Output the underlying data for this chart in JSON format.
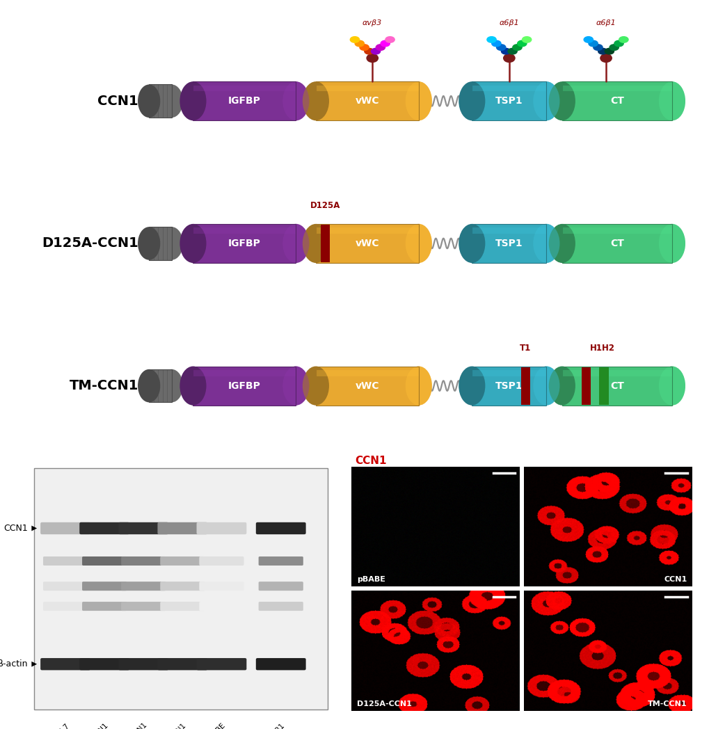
{
  "bg_color": "#ffffff",
  "domain_colors": {
    "signal": "#6a6a6a",
    "IGFBP": "#7B3094",
    "vWC": "#E8A830",
    "TSP1": "#35AABE",
    "CT": "#45C47A"
  },
  "integrin_label_color": "#8B0000",
  "row_labels": [
    "CCN1",
    "D125A-CCN1",
    "TM-CCN1"
  ],
  "avb3_bead_colors": [
    "#CC3300",
    "#FF6600",
    "#FF9900",
    "#FFCC00",
    "#9900CC",
    "#CC00CC",
    "#FF00FF",
    "#FF66CC"
  ],
  "a6b1_bead_colors_1": [
    "#003399",
    "#0066CC",
    "#0099FF",
    "#00CCFF",
    "#006633",
    "#009933",
    "#00CC44",
    "#66FF66"
  ],
  "a6b1_bead_colors_2": [
    "#003366",
    "#0055AA",
    "#0088DD",
    "#00AAFF",
    "#004422",
    "#007733",
    "#00AA44",
    "#44EE66"
  ]
}
